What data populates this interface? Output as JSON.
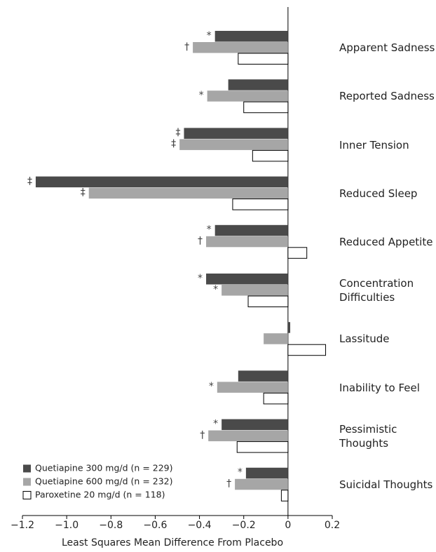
{
  "chart_data": {
    "type": "hbar",
    "x_label": "Least Squares Mean Difference From Placebo",
    "categories": [
      "Apparent Sadness",
      "Reported Sadness",
      "Inner Tension",
      "Reduced Sleep",
      "Reduced Appetite",
      "Concentration\nDifficulties",
      "Lassitude",
      "Inability to Feel",
      "Pessimistic\nThoughts",
      "Suicidal Thoughts"
    ],
    "series": [
      {
        "name": "Quetiapine 300 mg/d (n = 229)",
        "color": "#4a4a4a",
        "values": [
          -0.33,
          -0.27,
          -0.47,
          -1.14,
          -0.33,
          -0.37,
          0.01,
          -0.225,
          -0.3,
          -0.19
        ],
        "markers": [
          "*",
          null,
          "‡",
          "‡",
          "*",
          "*",
          null,
          null,
          "*",
          "*"
        ]
      },
      {
        "name": "Quetiapine 600 mg/d (n = 232)",
        "color": "#a6a6a6",
        "values": [
          -0.43,
          -0.365,
          -0.49,
          -0.9,
          -0.37,
          -0.3,
          -0.11,
          -0.32,
          -0.36,
          -0.24
        ],
        "markers": [
          "†",
          "*",
          "‡",
          "‡",
          "†",
          "*",
          null,
          "*",
          "†",
          "†"
        ]
      },
      {
        "name": "Paroxetine 20 mg/d (n = 118)",
        "color": "#ffffff",
        "values": [
          -0.225,
          -0.2,
          -0.16,
          -0.25,
          0.085,
          -0.18,
          0.17,
          -0.11,
          -0.23,
          -0.03
        ],
        "markers": [
          null,
          null,
          null,
          null,
          null,
          null,
          null,
          null,
          null,
          null
        ]
      }
    ],
    "xlim": [
      -1.2,
      0.2
    ],
    "xticks": [
      {
        "value": -1.2,
        "label": "−1.2"
      },
      {
        "value": -1.0,
        "label": "−1.0"
      },
      {
        "value": -0.8,
        "label": "−0.8"
      },
      {
        "value": -0.6,
        "label": "−0.6"
      },
      {
        "value": -0.4,
        "label": "−0.4"
      },
      {
        "value": -0.2,
        "label": "−0.2"
      },
      0,
      0.2
    ],
    "legend": "bottom-left"
  }
}
